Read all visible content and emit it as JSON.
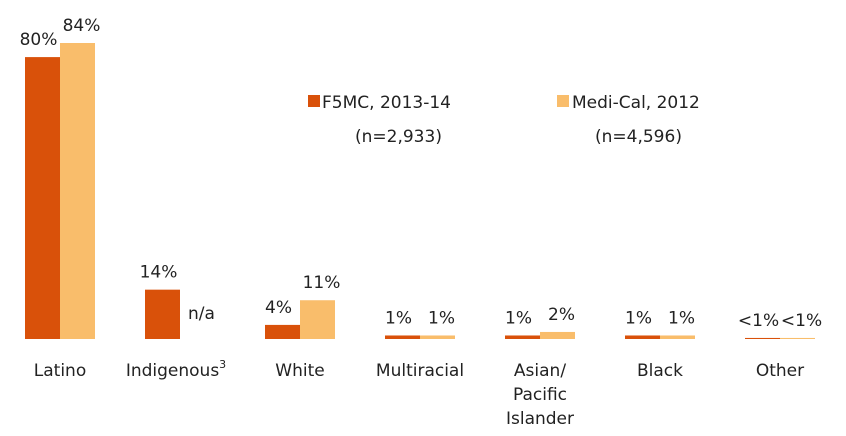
{
  "chart_data": {
    "type": "bar",
    "categories": [
      "Latino",
      "Indigenous",
      "White",
      "Multiracial",
      "Asian/ Pacific Islander",
      "Black",
      "Other"
    ],
    "category_footnotes": [
      null,
      "3",
      null,
      null,
      null,
      null,
      null
    ],
    "series": [
      {
        "name": "F5MC, 2013-14",
        "sample": "(n=2,933)",
        "color": "#d9510a",
        "values": [
          80,
          14,
          4,
          1,
          1,
          1,
          0.3
        ],
        "value_labels": [
          "80%",
          "14%",
          "4%",
          "1%",
          "1%",
          "1%",
          "<1%"
        ]
      },
      {
        "name": "Medi-Cal, 2012",
        "sample": "(n=4,596)",
        "color": "#f9bd6b",
        "values": [
          84,
          null,
          11,
          1,
          2,
          1,
          0.3
        ],
        "value_labels": [
          "84%",
          "n/a",
          "11%",
          "1%",
          "2%",
          "1%",
          "<1%"
        ]
      }
    ],
    "ylim": [
      0,
      84
    ]
  }
}
